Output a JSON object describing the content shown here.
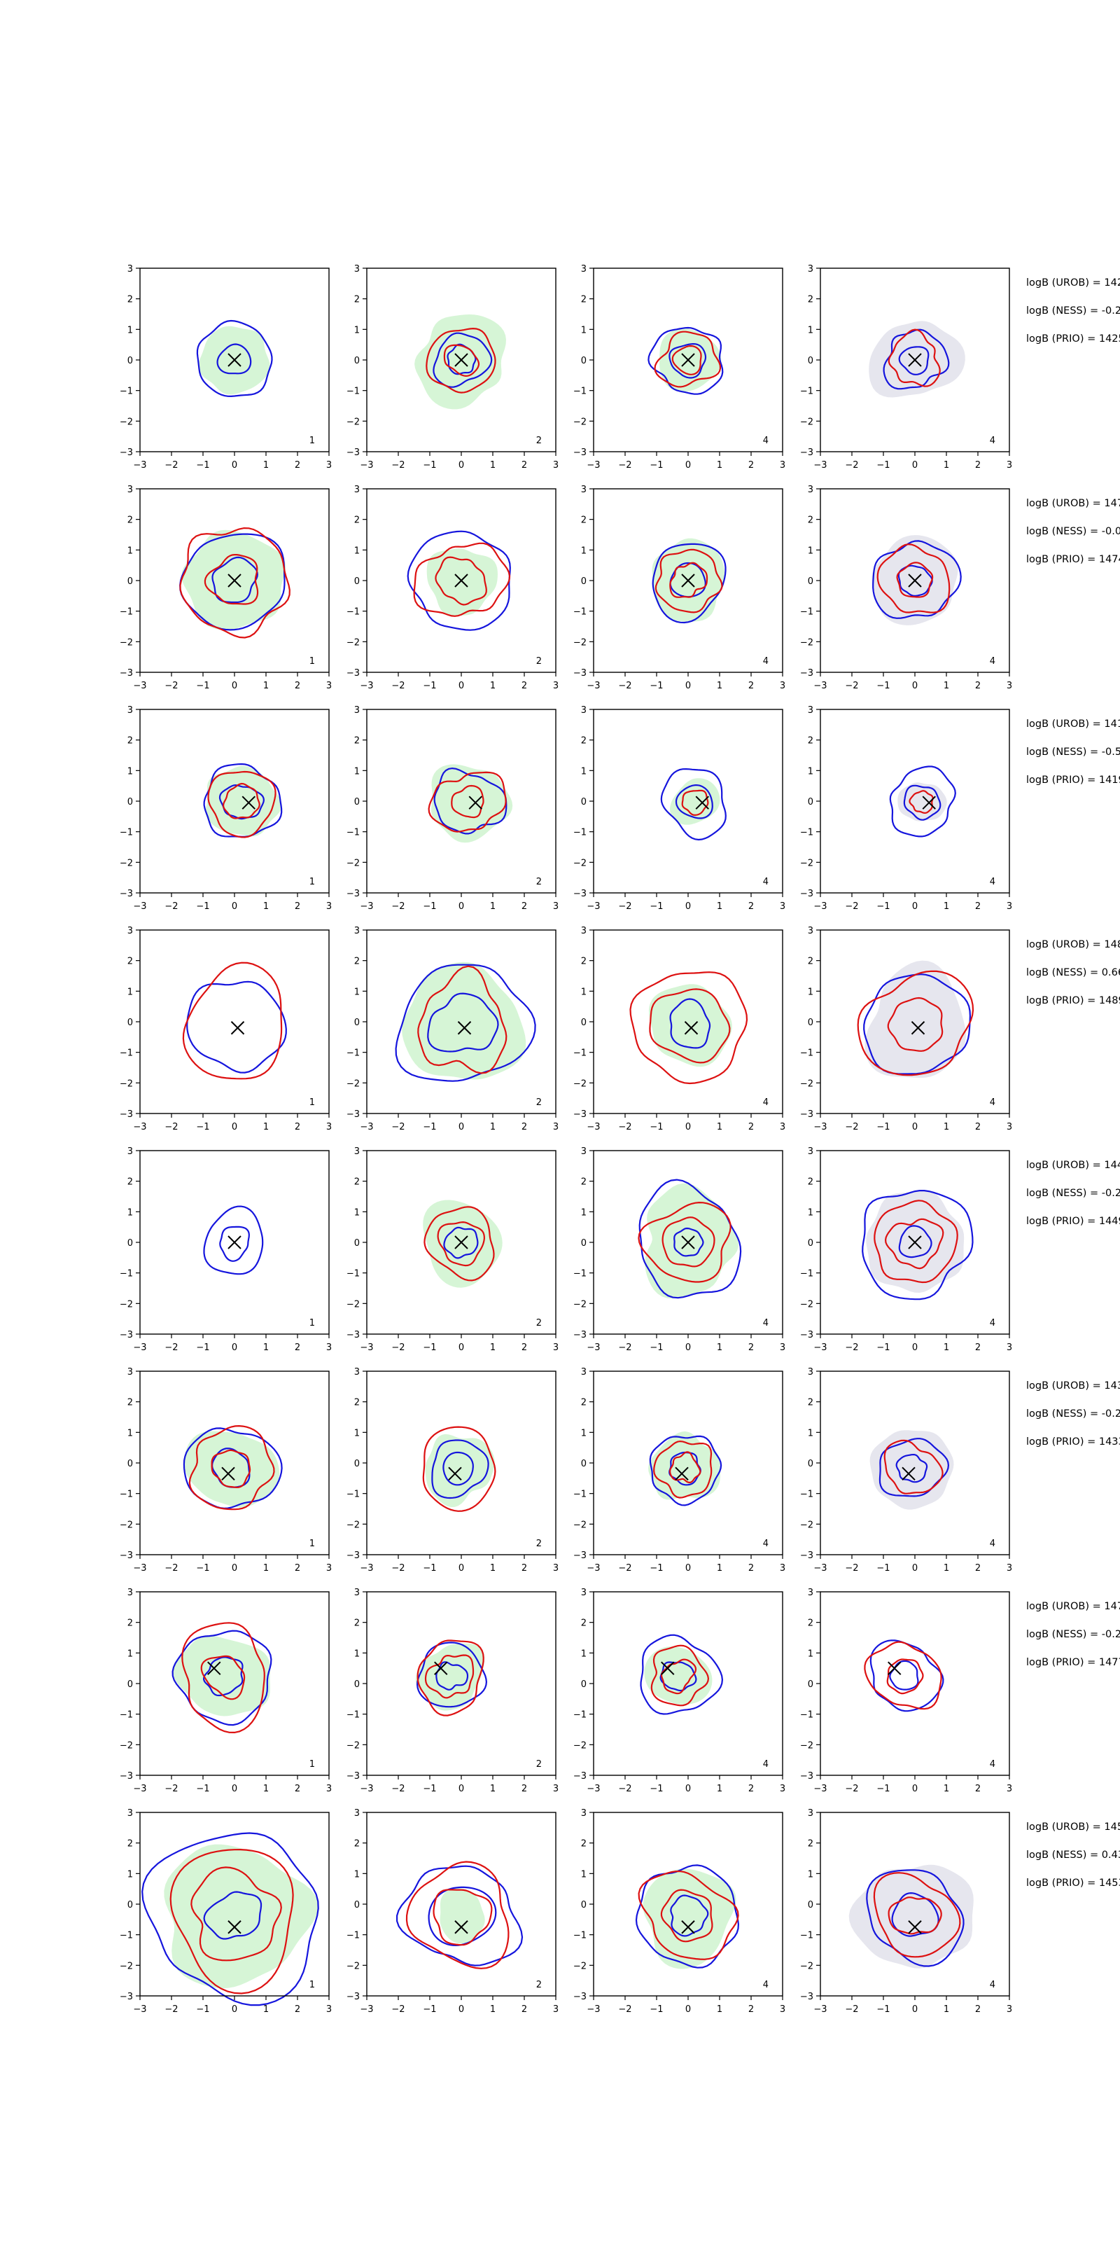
{
  "figure": {
    "rows": 8,
    "cols": 4,
    "colors": {
      "red": "#dd1111",
      "blue": "#1515dd",
      "green_fill": "#d6f5d6",
      "grey_fill": "#e6e6ee",
      "axis": "#000000",
      "background": "#ffffff"
    }
  },
  "chart_data": {
    "type": "contour",
    "axis": {
      "xlim": [
        -3,
        3
      ],
      "ylim": [
        -3,
        3
      ],
      "ticks": [
        -3,
        -2,
        -1,
        0,
        1,
        2,
        3
      ]
    },
    "column_labels": [
      "1",
      "2",
      "4",
      "4"
    ],
    "rows": [
      {
        "marker": [
          0.0,
          0.0
        ],
        "annotations": [
          "logB (UROB) = 142",
          "logB (NESS) = -0.2",
          "logB (PRIO) = 1425"
        ],
        "panels": [
          {
            "fill": "green",
            "fill_r": 1.1,
            "blue": [
              1.2,
              0.5
            ],
            "red": []
          },
          {
            "fill": "green",
            "fill_r": 1.45,
            "blue": [
              0.85,
              0.45
            ],
            "red": [
              1.05,
              0.5
            ]
          },
          {
            "fill": "green",
            "fill_r": 1.0,
            "blue": [
              1.1,
              0.55
            ],
            "red": [
              0.9,
              0.45
            ]
          },
          {
            "fill": "grey",
            "fill_r": 1.35,
            "blue": [
              0.95,
              0.45
            ],
            "red": [
              0.8
            ]
          }
        ]
      },
      {
        "marker": [
          0.0,
          0.0
        ],
        "annotations": [
          "logB (UROB) = 147",
          "logB (NESS) = -0.0",
          "logB (PRIO) = 1474"
        ],
        "panels": [
          {
            "fill": "green",
            "fill_r": 1.6,
            "blue": [
              1.6,
              0.7
            ],
            "red": [
              1.7,
              0.8
            ]
          },
          {
            "fill": "green",
            "fill_r": 1.1,
            "blue": [
              1.6
            ],
            "red": [
              1.3,
              0.75
            ]
          },
          {
            "fill": "green",
            "fill_r": 1.25,
            "blue": [
              1.2,
              0.55
            ],
            "red": [
              1.0,
              0.55
            ]
          },
          {
            "fill": "grey",
            "fill_r": 1.4,
            "blue": [
              1.3,
              0.5
            ],
            "red": [
              1.1,
              0.55
            ]
          }
        ]
      },
      {
        "marker": [
          0.45,
          -0.05
        ],
        "annotations": [
          "logB (UROB) = 141",
          "logB (NESS) = -0.5",
          "logB (PRIO) = 1419"
        ],
        "panels": [
          {
            "fill": "green",
            "fill_r": 1.15,
            "blue": [
              1.2,
              0.6
            ],
            "red": [
              1.05,
              0.55
            ]
          },
          {
            "fill": "green",
            "fill_r": 1.25,
            "blue": [
              1.05
            ],
            "red": [
              1.05,
              0.5
            ]
          },
          {
            "fill": "green",
            "fill_r": 0.75,
            "blue": [
              1.05,
              0.55
            ],
            "red": [
              0.4
            ]
          },
          {
            "fill": "grey",
            "fill_r": 0.7,
            "blue": [
              1.05,
              0.55
            ],
            "red": [
              0.35
            ]
          }
        ]
      },
      {
        "marker": [
          0.1,
          -0.2
        ],
        "annotations": [
          "logB (UROB) = 148",
          "logB (NESS) = 0.66",
          "logB (PRIO) = 1489"
        ],
        "panels": [
          {
            "fill": "none",
            "fill_r": 0,
            "blue": [
              1.5
            ],
            "red": [
              1.7
            ]
          },
          {
            "fill": "green",
            "fill_r": 1.9,
            "blue": [
              2.0,
              1.0
            ],
            "red": [
              1.45
            ]
          },
          {
            "fill": "green",
            "fill_r": 1.3,
            "blue": [
              0.7
            ],
            "red": [
              1.8,
              1.2
            ]
          },
          {
            "fill": "grey",
            "fill_r": 1.7,
            "blue": [
              1.65
            ],
            "red": [
              1.7,
              0.85
            ]
          }
        ]
      },
      {
        "marker": [
          0.0,
          0.0
        ],
        "annotations": [
          "logB (UROB) = 144",
          "logB (NESS) = -0.2",
          "logB (PRIO) = 1449"
        ],
        "panels": [
          {
            "fill": "none",
            "fill_r": 0,
            "blue": [
              1.0,
              0.5
            ],
            "red": []
          },
          {
            "fill": "green",
            "fill_r": 1.3,
            "blue": [
              0.5
            ],
            "red": [
              1.1,
              0.7
            ]
          },
          {
            "fill": "green",
            "fill_r": 1.6,
            "blue": [
              1.7,
              0.45
            ],
            "red": [
              1.3,
              0.8
            ]
          },
          {
            "fill": "grey",
            "fill_r": 1.6,
            "blue": [
              1.75,
              0.5
            ],
            "red": [
              1.3,
              0.8
            ]
          }
        ]
      },
      {
        "marker": [
          -0.2,
          -0.35
        ],
        "annotations": [
          "logB (UROB) = 143",
          "logB (NESS) = -0.2",
          "logB (PRIO) = 1433"
        ],
        "panels": [
          {
            "fill": "green",
            "fill_r": 1.35,
            "blue": [
              1.4,
              0.6
            ],
            "red": [
              1.3,
              0.6
            ]
          },
          {
            "fill": "green",
            "fill_r": 1.1,
            "blue": [
              0.9,
              0.5
            ],
            "red": [
              1.25
            ]
          },
          {
            "fill": "green",
            "fill_r": 1.1,
            "blue": [
              1.1,
              0.5
            ],
            "red": [
              0.9,
              0.45
            ]
          },
          {
            "fill": "grey",
            "fill_r": 1.3,
            "blue": [
              1.0,
              0.45
            ],
            "red": [
              0.85
            ]
          }
        ]
      },
      {
        "marker": [
          -0.65,
          0.5
        ],
        "annotations": [
          "logB (UROB) = 147",
          "logB (NESS) = -0.2",
          "logB (PRIO) = 1477"
        ],
        "panels": [
          {
            "fill": "green",
            "fill_r": 1.4,
            "blue": [
              1.5,
              0.6
            ],
            "red": [
              1.5,
              0.65
            ]
          },
          {
            "fill": "green",
            "fill_r": 1.05,
            "blue": [
              1.05,
              0.45
            ],
            "red": [
              1.1,
              0.7
            ]
          },
          {
            "fill": "green",
            "fill_r": 1.0,
            "blue": [
              1.25,
              0.5
            ],
            "red": [
              0.9,
              0.5
            ]
          },
          {
            "fill": "none",
            "fill_r": 0,
            "blue": [
              1.1,
              0.45
            ],
            "red": [
              1.1,
              0.55
            ]
          }
        ]
      },
      {
        "marker": [
          0.0,
          -0.75
        ],
        "annotations": [
          "logB (UROB) = 145",
          "logB (NESS) = 0.43",
          "logB (PRIO) = 1453"
        ],
        "panels": [
          {
            "fill": "green",
            "fill_r": 2.3,
            "blue": [
              2.7,
              0.8
            ],
            "red": [
              2.1,
              1.4
            ]
          },
          {
            "fill": "green",
            "fill_r": 0.8,
            "blue": [
              1.7,
              1.0
            ],
            "red": [
              1.6,
              0.9
            ]
          },
          {
            "fill": "green",
            "fill_r": 1.5,
            "blue": [
              1.6,
              0.6
            ],
            "red": [
              1.4,
              0.8
            ]
          },
          {
            "fill": "grey",
            "fill_r": 1.8,
            "blue": [
              1.5,
              0.7
            ],
            "red": [
              1.3,
              0.7
            ]
          }
        ]
      }
    ]
  }
}
